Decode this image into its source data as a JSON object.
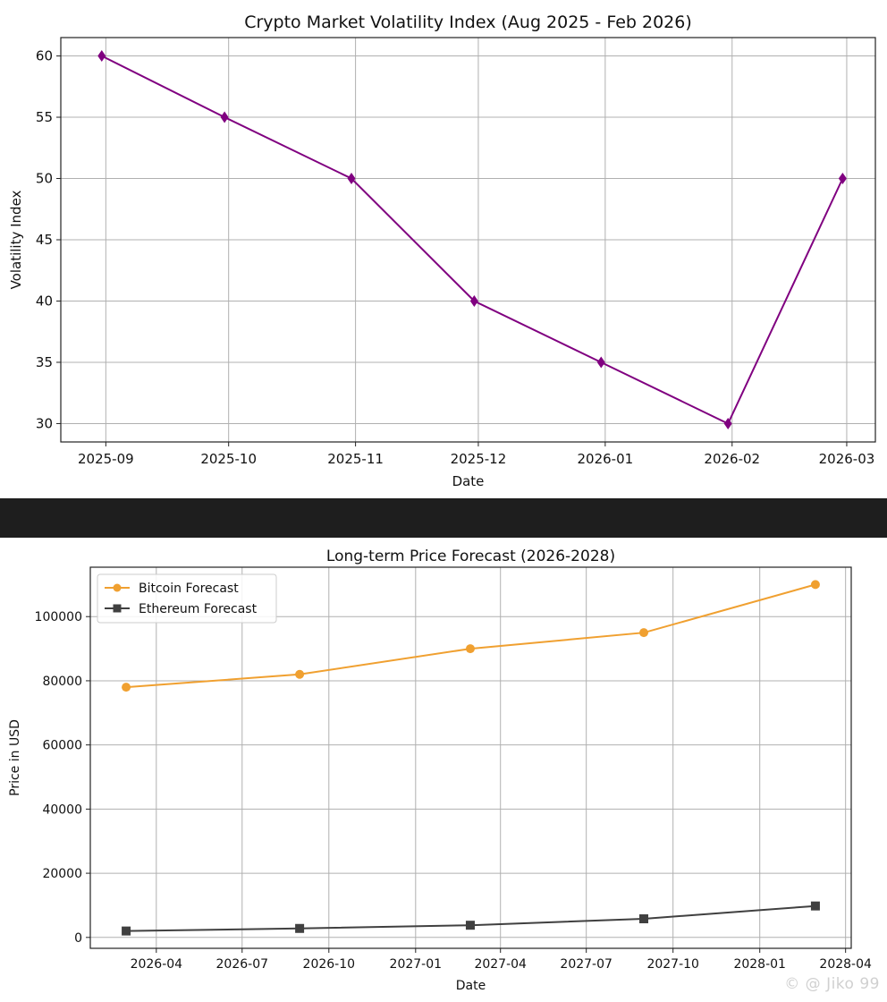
{
  "chart_data": [
    {
      "type": "line",
      "title": "Crypto Market Volatility Index (Aug 2025 - Feb 2026)",
      "xlabel": "Date",
      "ylabel": "Volatility Index",
      "x": [
        "2025-08-31",
        "2025-09-30",
        "2025-10-31",
        "2025-11-30",
        "2025-12-31",
        "2026-01-31",
        "2026-02-28"
      ],
      "series": [
        {
          "values": [
            60,
            55,
            50,
            40,
            35,
            30,
            50
          ],
          "color": "#800080",
          "marker": "diamond"
        }
      ],
      "x_ticks": [
        "2025-09",
        "2025-10",
        "2025-11",
        "2025-12",
        "2026-01",
        "2026-02",
        "2026-03"
      ],
      "y_ticks": [
        30,
        35,
        40,
        45,
        50,
        55,
        60
      ],
      "ylim": [
        28.5,
        61.5
      ],
      "xlim": [
        "2025-08-21",
        "2026-03-08"
      ],
      "grid": true,
      "legend": "none"
    },
    {
      "type": "line",
      "title": "Long-term Price Forecast (2026-2028)",
      "xlabel": "Date",
      "ylabel": "Price in USD",
      "x": [
        "2026-02-28",
        "2026-08-31",
        "2027-02-28",
        "2027-08-31",
        "2028-02-29"
      ],
      "series": [
        {
          "name": "Bitcoin Forecast",
          "values": [
            78000,
            82000,
            90000,
            95000,
            110000
          ],
          "color": "#f0a030",
          "marker": "circle"
        },
        {
          "name": "Ethereum Forecast",
          "values": [
            2000,
            2800,
            3800,
            5800,
            9800
          ],
          "color": "#404040",
          "marker": "square"
        }
      ],
      "x_ticks": [
        "2026-04",
        "2026-07",
        "2026-10",
        "2027-01",
        "2027-04",
        "2027-07",
        "2027-10",
        "2028-01",
        "2028-04"
      ],
      "y_ticks": [
        0,
        20000,
        40000,
        60000,
        80000,
        100000
      ],
      "ylim": [
        -3400,
        115400
      ],
      "xlim": [
        "2026-01-21",
        "2028-04-07"
      ],
      "grid": true,
      "legend": "top-left"
    }
  ],
  "watermark": "© @ Jiko 99"
}
